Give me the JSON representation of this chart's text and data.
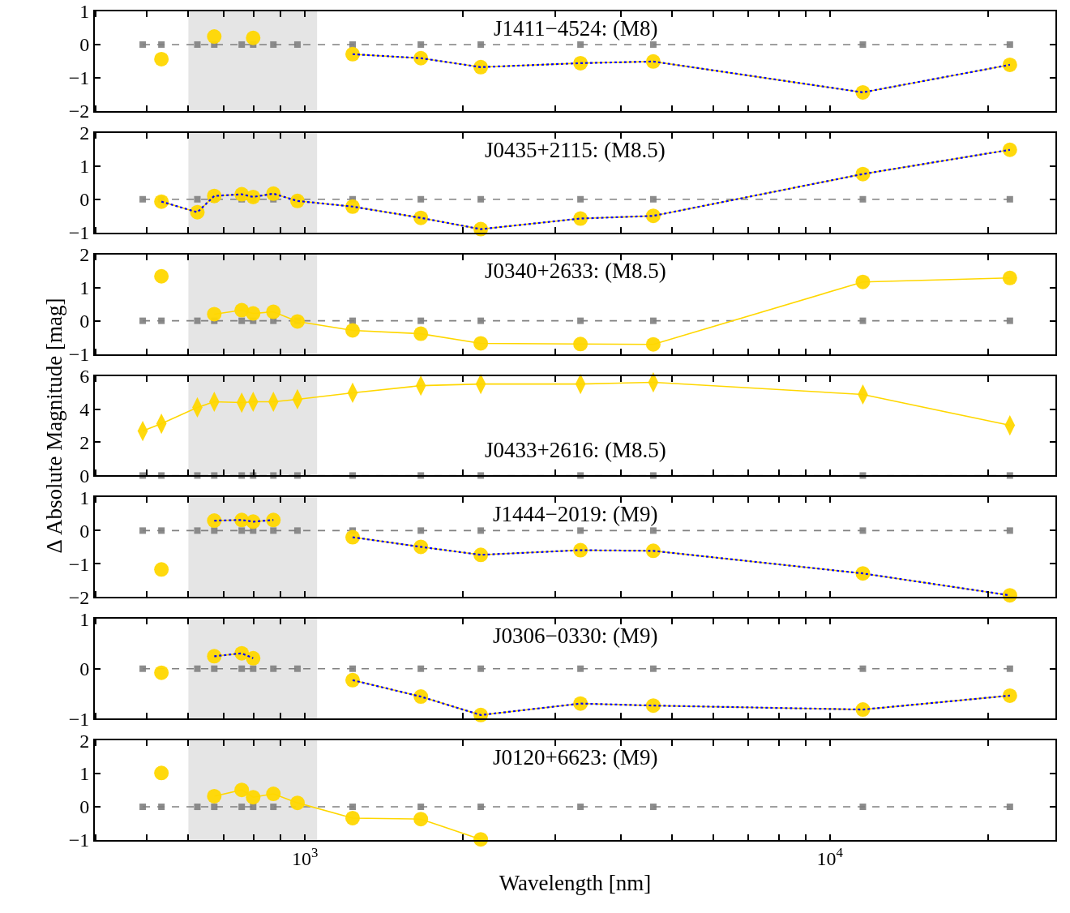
{
  "chart_data": [
    {
      "type": "line",
      "title": "J1411−4524: (M8)",
      "log": "x",
      "tick_labels": "y",
      "x": [
        491,
        533,
        624,
        672,
        758,
        797,
        871,
        968,
        1233,
        1663,
        2163,
        3350,
        4610,
        11560,
        22030
      ],
      "xlim": [
        398,
        26900
      ],
      "xticks": [
        {
          "value": 400,
          "label": null
        },
        {
          "value": 500,
          "label": null
        },
        {
          "value": 600,
          "label": null
        },
        {
          "value": 700,
          "label": null
        },
        {
          "value": 800,
          "label": null
        },
        {
          "value": 900,
          "label": null
        },
        {
          "value": 1000,
          "label": "10$^{3}$"
        },
        {
          "value": 2000,
          "label": null
        },
        {
          "value": 3000,
          "label": null
        },
        {
          "value": 4000,
          "label": null
        },
        {
          "value": 5000,
          "label": null
        },
        {
          "value": 6000,
          "label": null
        },
        {
          "value": 7000,
          "label": null
        },
        {
          "value": 8000,
          "label": null
        },
        {
          "value": 9000,
          "label": null
        },
        {
          "value": 10000,
          "label": "10$^{4}$"
        },
        {
          "value": 20000,
          "label": null
        }
      ],
      "ylim": [
        -2,
        1
      ],
      "yticks": [
        -2,
        -1,
        0,
        1
      ],
      "bands": [
        {
          "axis": "x",
          "from": 600,
          "to": 1055,
          "color": "#e5e5e5"
        }
      ],
      "series": [
        {
          "color": "#808080",
          "marker": "square",
          "line_style": "dashed",
          "values": [
            0,
            0,
            0,
            0,
            0,
            0,
            0,
            0,
            0,
            0,
            0,
            0,
            0,
            0,
            0
          ]
        },
        {
          "color": "#ffd700",
          "marker": "circle",
          "line_style": "solid",
          "values": [
            null,
            -0.44,
            null,
            0.24,
            null,
            0.2,
            null,
            null,
            -0.29,
            -0.41,
            -0.68,
            -0.56,
            -0.51,
            -1.44,
            -0.61
          ]
        },
        {
          "color": "#0000ff",
          "marker": "none",
          "line_style": "dotted",
          "values": [
            null,
            null,
            null,
            null,
            null,
            null,
            null,
            null,
            -0.29,
            -0.41,
            -0.68,
            -0.56,
            -0.51,
            -1.44,
            -0.61
          ]
        }
      ]
    },
    {
      "type": "line",
      "title": "J0435+2115: (M8.5)",
      "log": "x",
      "tick_labels": "y",
      "x": [
        491,
        533,
        624,
        672,
        758,
        797,
        871,
        968,
        1233,
        1663,
        2163,
        3350,
        4610,
        11560,
        22030
      ],
      "xlim": [
        398,
        26900
      ],
      "xticks": [
        {
          "value": 400,
          "label": null
        },
        {
          "value": 500,
          "label": null
        },
        {
          "value": 600,
          "label": null
        },
        {
          "value": 700,
          "label": null
        },
        {
          "value": 800,
          "label": null
        },
        {
          "value": 900,
          "label": null
        },
        {
          "value": 1000,
          "label": "10$^{3}$"
        },
        {
          "value": 2000,
          "label": null
        },
        {
          "value": 3000,
          "label": null
        },
        {
          "value": 4000,
          "label": null
        },
        {
          "value": 5000,
          "label": null
        },
        {
          "value": 6000,
          "label": null
        },
        {
          "value": 7000,
          "label": null
        },
        {
          "value": 8000,
          "label": null
        },
        {
          "value": 9000,
          "label": null
        },
        {
          "value": 10000,
          "label": "10$^{4}$"
        },
        {
          "value": 20000,
          "label": null
        }
      ],
      "ylim": [
        -1,
        2
      ],
      "yticks": [
        -1,
        0,
        1,
        2
      ],
      "bands": [
        {
          "axis": "x",
          "from": 600,
          "to": 1055,
          "color": "#e5e5e5"
        }
      ],
      "series": [
        {
          "color": "#808080",
          "marker": "square",
          "line_style": "dashed",
          "values": [
            0,
            0,
            0,
            0,
            0,
            0,
            0,
            0,
            0,
            0,
            0,
            0,
            0,
            0,
            0
          ]
        },
        {
          "color": "#ffd700",
          "marker": "circle",
          "line_style": "solid",
          "values": [
            null,
            -0.07,
            -0.39,
            0.1,
            0.15,
            0.07,
            0.17,
            -0.05,
            -0.22,
            -0.56,
            -0.9,
            -0.58,
            -0.5,
            0.76,
            1.49
          ]
        },
        {
          "color": "#0000ff",
          "marker": "none",
          "line_style": "dotted",
          "values": [
            null,
            -0.07,
            -0.39,
            0.1,
            0.15,
            0.07,
            0.17,
            -0.05,
            -0.22,
            -0.56,
            -0.9,
            -0.58,
            -0.5,
            0.76,
            1.49
          ]
        }
      ]
    },
    {
      "type": "line",
      "title": "J0340+2633: (M8.5)",
      "log": "x",
      "tick_labels": "y",
      "x": [
        491,
        533,
        624,
        672,
        758,
        797,
        871,
        968,
        1233,
        1663,
        2163,
        3350,
        4610,
        11560,
        22030
      ],
      "xlim": [
        398,
        26900
      ],
      "xticks": [
        {
          "value": 400,
          "label": null
        },
        {
          "value": 500,
          "label": null
        },
        {
          "value": 600,
          "label": null
        },
        {
          "value": 700,
          "label": null
        },
        {
          "value": 800,
          "label": null
        },
        {
          "value": 900,
          "label": null
        },
        {
          "value": 1000,
          "label": "10$^{3}$"
        },
        {
          "value": 2000,
          "label": null
        },
        {
          "value": 3000,
          "label": null
        },
        {
          "value": 4000,
          "label": null
        },
        {
          "value": 5000,
          "label": null
        },
        {
          "value": 6000,
          "label": null
        },
        {
          "value": 7000,
          "label": null
        },
        {
          "value": 8000,
          "label": null
        },
        {
          "value": 9000,
          "label": null
        },
        {
          "value": 10000,
          "label": "10$^{4}$"
        },
        {
          "value": 20000,
          "label": null
        }
      ],
      "ylim": [
        -1,
        2
      ],
      "yticks": [
        -1,
        0,
        1,
        2
      ],
      "bands": [
        {
          "axis": "x",
          "from": 600,
          "to": 1055,
          "color": "#e5e5e5"
        }
      ],
      "series": [
        {
          "color": "#808080",
          "marker": "square",
          "line_style": "dashed",
          "values": [
            0,
            0,
            0,
            0,
            0,
            0,
            0,
            0,
            0,
            0,
            0,
            0,
            0,
            0,
            0
          ]
        },
        {
          "color": "#ffd700",
          "marker": "circle",
          "line_style": "solid",
          "values": [
            null,
            1.34,
            null,
            0.2,
            0.32,
            0.22,
            0.27,
            -0.02,
            -0.29,
            -0.39,
            -0.68,
            -0.7,
            -0.71,
            1.17,
            1.29
          ]
        }
      ]
    },
    {
      "type": "line",
      "title": "J0433+2616: (M8.5)",
      "ylabel": "Δ Absolute Magnitude [mag]",
      "log": "x",
      "tick_labels": "y",
      "x": [
        491,
        533,
        624,
        672,
        758,
        797,
        871,
        968,
        1233,
        1663,
        2163,
        3350,
        4610,
        11560,
        22030
      ],
      "xlim": [
        398,
        26900
      ],
      "xticks": [
        {
          "value": 400,
          "label": null
        },
        {
          "value": 500,
          "label": null
        },
        {
          "value": 600,
          "label": null
        },
        {
          "value": 700,
          "label": null
        },
        {
          "value": 800,
          "label": null
        },
        {
          "value": 900,
          "label": null
        },
        {
          "value": 1000,
          "label": "10$^{3}$"
        },
        {
          "value": 2000,
          "label": null
        },
        {
          "value": 3000,
          "label": null
        },
        {
          "value": 4000,
          "label": null
        },
        {
          "value": 5000,
          "label": null
        },
        {
          "value": 6000,
          "label": null
        },
        {
          "value": 7000,
          "label": null
        },
        {
          "value": 8000,
          "label": null
        },
        {
          "value": 9000,
          "label": null
        },
        {
          "value": 10000,
          "label": "10$^{4}$"
        },
        {
          "value": 20000,
          "label": null
        }
      ],
      "ylim": [
        0,
        6
      ],
      "yticks": [
        0,
        2,
        4,
        6
      ],
      "bands": [
        {
          "axis": "x",
          "from": 600,
          "to": 1055,
          "color": "#e5e5e5"
        }
      ],
      "series": [
        {
          "color": "#808080",
          "marker": "square",
          "line_style": "dashed",
          "values": [
            0,
            0,
            0,
            0,
            0,
            0,
            0,
            0,
            0,
            0,
            0,
            0,
            0,
            0,
            0
          ]
        },
        {
          "color": "#ffd700",
          "marker": "diamond",
          "line_style": "solid",
          "values": [
            2.68,
            3.12,
            4.1,
            4.44,
            4.39,
            4.44,
            4.44,
            4.59,
            4.98,
            5.41,
            5.51,
            5.51,
            5.61,
            4.88,
            3.02
          ]
        }
      ]
    },
    {
      "type": "line",
      "title": "J1444−2019: (M9)",
      "log": "x",
      "tick_labels": "y",
      "x": [
        491,
        533,
        624,
        672,
        758,
        797,
        871,
        968,
        1233,
        1663,
        2163,
        3350,
        4610,
        11560,
        22030
      ],
      "xlim": [
        398,
        26900
      ],
      "xticks": [
        {
          "value": 400,
          "label": null
        },
        {
          "value": 500,
          "label": null
        },
        {
          "value": 600,
          "label": null
        },
        {
          "value": 700,
          "label": null
        },
        {
          "value": 800,
          "label": null
        },
        {
          "value": 900,
          "label": null
        },
        {
          "value": 1000,
          "label": "10$^{3}$"
        },
        {
          "value": 2000,
          "label": null
        },
        {
          "value": 3000,
          "label": null
        },
        {
          "value": 4000,
          "label": null
        },
        {
          "value": 5000,
          "label": null
        },
        {
          "value": 6000,
          "label": null
        },
        {
          "value": 7000,
          "label": null
        },
        {
          "value": 8000,
          "label": null
        },
        {
          "value": 9000,
          "label": null
        },
        {
          "value": 10000,
          "label": "10$^{4}$"
        },
        {
          "value": 20000,
          "label": null
        }
      ],
      "ylim": [
        -2,
        1
      ],
      "yticks": [
        -2,
        -1,
        0,
        1
      ],
      "bands": [
        {
          "axis": "x",
          "from": 600,
          "to": 1055,
          "color": "#e5e5e5"
        }
      ],
      "series": [
        {
          "color": "#808080",
          "marker": "square",
          "line_style": "dashed",
          "values": [
            0,
            0,
            0,
            0,
            0,
            0,
            0,
            0,
            0,
            0,
            0,
            0,
            0,
            0,
            0
          ]
        },
        {
          "color": "#ffd700",
          "marker": "circle",
          "line_style": "solid",
          "values": [
            null,
            -1.17,
            null,
            0.3,
            0.32,
            0.27,
            0.32,
            null,
            -0.2,
            -0.49,
            -0.73,
            -0.59,
            -0.61,
            -1.29,
            -1.95
          ]
        },
        {
          "color": "#0000ff",
          "marker": "none",
          "line_style": "dotted",
          "values": [
            null,
            null,
            null,
            0.3,
            0.32,
            0.27,
            0.32,
            null,
            -0.2,
            -0.49,
            -0.73,
            -0.59,
            -0.61,
            -1.29,
            -1.95
          ]
        }
      ]
    },
    {
      "type": "line",
      "title": "J0306−0330: (M9)",
      "log": "x",
      "tick_labels": "y",
      "x": [
        491,
        533,
        624,
        672,
        758,
        797,
        871,
        968,
        1233,
        1663,
        2163,
        3350,
        4610,
        11560,
        22030
      ],
      "xlim": [
        398,
        26900
      ],
      "xticks": [
        {
          "value": 400,
          "label": null
        },
        {
          "value": 500,
          "label": null
        },
        {
          "value": 600,
          "label": null
        },
        {
          "value": 700,
          "label": null
        },
        {
          "value": 800,
          "label": null
        },
        {
          "value": 900,
          "label": null
        },
        {
          "value": 1000,
          "label": "10$^{3}$"
        },
        {
          "value": 2000,
          "label": null
        },
        {
          "value": 3000,
          "label": null
        },
        {
          "value": 4000,
          "label": null
        },
        {
          "value": 5000,
          "label": null
        },
        {
          "value": 6000,
          "label": null
        },
        {
          "value": 7000,
          "label": null
        },
        {
          "value": 8000,
          "label": null
        },
        {
          "value": 9000,
          "label": null
        },
        {
          "value": 10000,
          "label": "10$^{4}$"
        },
        {
          "value": 20000,
          "label": null
        }
      ],
      "ylim": [
        -1,
        1
      ],
      "yticks": [
        -1,
        0,
        1
      ],
      "bands": [
        {
          "axis": "x",
          "from": 600,
          "to": 1055,
          "color": "#e5e5e5"
        }
      ],
      "series": [
        {
          "color": "#808080",
          "marker": "square",
          "line_style": "dashed",
          "values": [
            0,
            null,
            0,
            0,
            0,
            0,
            0,
            0,
            0,
            0,
            0,
            0,
            0,
            0,
            0
          ]
        },
        {
          "color": "#ffd700",
          "marker": "circle",
          "line_style": "solid",
          "values": [
            null,
            -0.08,
            null,
            0.25,
            0.31,
            0.21,
            null,
            null,
            -0.23,
            -0.56,
            -0.93,
            -0.7,
            -0.74,
            -0.82,
            -0.54
          ]
        },
        {
          "color": "#0000ff",
          "marker": "none",
          "line_style": "dotted",
          "values": [
            null,
            null,
            null,
            0.25,
            0.31,
            0.21,
            null,
            null,
            -0.23,
            -0.56,
            -0.93,
            -0.7,
            -0.74,
            -0.82,
            -0.54
          ]
        }
      ]
    },
    {
      "type": "line",
      "title": "J0120+6623: (M9)",
      "xlabel": "Wavelength [nm]",
      "log": "x",
      "x": [
        491,
        533,
        624,
        672,
        758,
        797,
        871,
        968,
        1233,
        1663,
        2163,
        3350,
        4610,
        11560,
        22030
      ],
      "xlim": [
        398,
        26900
      ],
      "xticks": [
        {
          "value": 400,
          "label": null
        },
        {
          "value": 500,
          "label": null
        },
        {
          "value": 600,
          "label": null
        },
        {
          "value": 700,
          "label": null
        },
        {
          "value": 800,
          "label": null
        },
        {
          "value": 900,
          "label": null
        },
        {
          "value": 1000,
          "label": "10$^{3}$"
        },
        {
          "value": 2000,
          "label": null
        },
        {
          "value": 3000,
          "label": null
        },
        {
          "value": 4000,
          "label": null
        },
        {
          "value": 5000,
          "label": null
        },
        {
          "value": 6000,
          "label": null
        },
        {
          "value": 7000,
          "label": null
        },
        {
          "value": 8000,
          "label": null
        },
        {
          "value": 9000,
          "label": null
        },
        {
          "value": 10000,
          "label": "10$^{4}$"
        },
        {
          "value": 20000,
          "label": null
        }
      ],
      "ylim": [
        -1,
        2
      ],
      "yticks": [
        -1,
        0,
        1,
        2
      ],
      "bands": [
        {
          "axis": "x",
          "from": 600,
          "to": 1055,
          "color": "#e5e5e5"
        }
      ],
      "series": [
        {
          "color": "#808080",
          "marker": "square",
          "line_style": "dashed",
          "values": [
            0,
            0,
            0,
            0,
            0,
            0,
            0,
            null,
            0,
            0,
            0,
            0,
            0,
            0,
            0
          ]
        },
        {
          "color": "#ffd700",
          "marker": "circle",
          "line_style": "solid",
          "values": [
            null,
            1.02,
            null,
            0.32,
            0.51,
            0.29,
            0.39,
            0.12,
            -0.34,
            -0.37,
            -0.98,
            null,
            null,
            null,
            null
          ]
        }
      ]
    }
  ]
}
